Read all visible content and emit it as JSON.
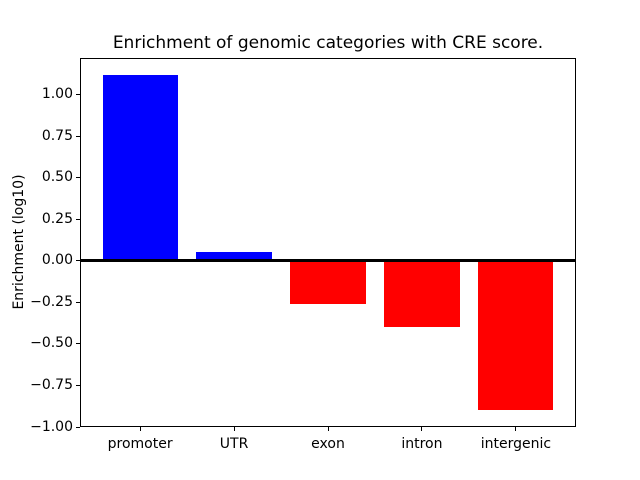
{
  "figure": {
    "background": "#ffffff"
  },
  "chart_data": {
    "type": "bar",
    "title": "Enrichment of genomic categories with CRE score.",
    "xlabel": "",
    "ylabel": "Enrichment (log10)",
    "categories": [
      "promoter",
      "UTR",
      "exon",
      "intron",
      "intergenic"
    ],
    "values": [
      1.12,
      0.05,
      -0.26,
      -0.4,
      -0.9
    ],
    "bar_colors": [
      "#0000ff",
      "#0000ff",
      "#ff0000",
      "#ff0000",
      "#ff0000"
    ],
    "positive_color": "#0000ff",
    "negative_color": "#ff0000",
    "ylim": [
      -1.0,
      1.22
    ],
    "xlim": [
      -0.64,
      4.64
    ],
    "yticks": [
      1.0,
      0.75,
      0.5,
      0.25,
      0.0,
      -0.25,
      -0.5,
      -0.75,
      -1.0
    ],
    "ytick_labels": [
      "1.00",
      "0.75",
      "0.50",
      "0.25",
      "0.00",
      "−0.25",
      "−0.50",
      "−0.75",
      "−1.00"
    ],
    "bar_width": 0.8,
    "zero_line": {
      "show": true,
      "color": "#000000"
    },
    "grid": false,
    "legend": null,
    "spine_color": "#000000",
    "text_color": "#000000"
  }
}
